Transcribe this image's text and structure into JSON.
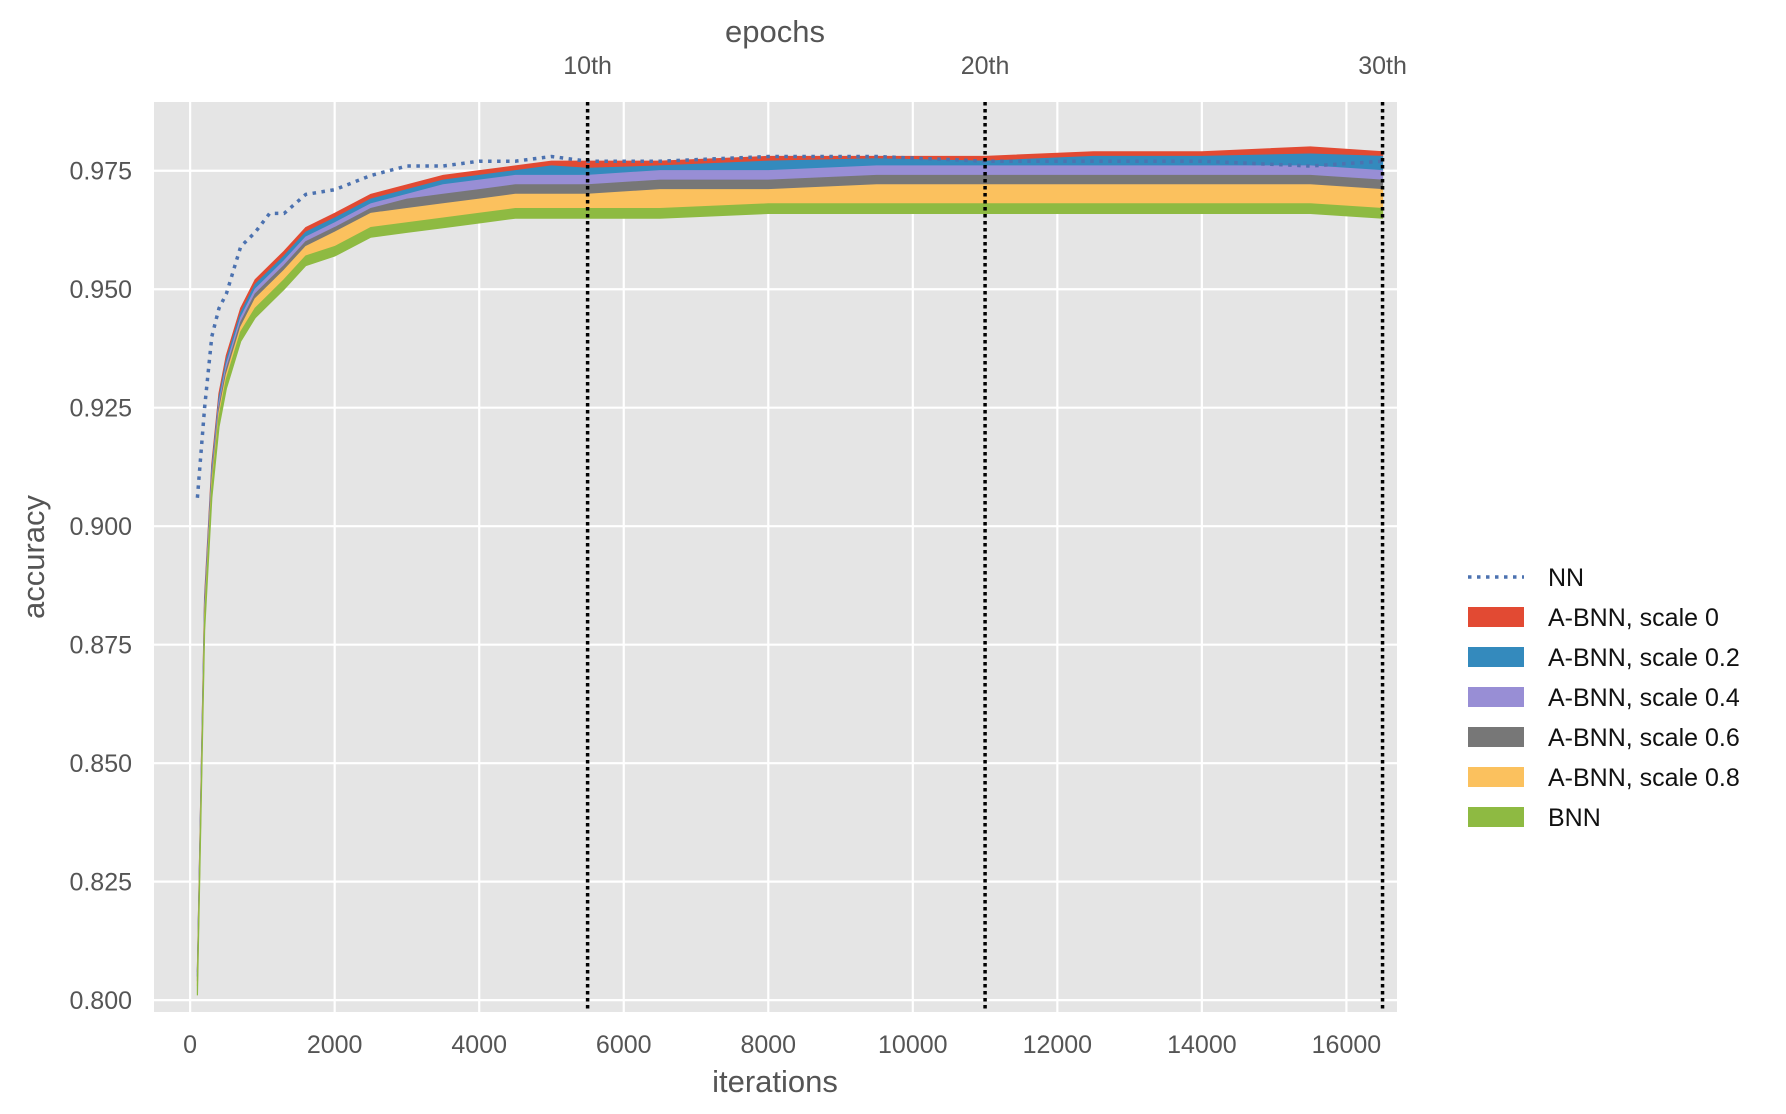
{
  "chart_data": {
    "type": "area",
    "title": "",
    "xlabel": "iterations",
    "ylabel": "accuracy",
    "top_axis_label": "epochs",
    "xlim": [
      -500,
      16700
    ],
    "ylim": [
      0.7975,
      0.9895
    ],
    "x_ticks": [
      0,
      2000,
      4000,
      6000,
      8000,
      10000,
      12000,
      14000,
      16000
    ],
    "y_ticks": [
      0.8,
      0.825,
      0.85,
      0.875,
      0.9,
      0.925,
      0.95,
      0.975
    ],
    "y_tick_labels": [
      "0.800",
      "0.825",
      "0.850",
      "0.875",
      "0.900",
      "0.925",
      "0.950",
      "0.975"
    ],
    "epoch_markers": [
      {
        "label": "10th",
        "x": 5500
      },
      {
        "label": "20th",
        "x": 11000
      },
      {
        "label": "30th",
        "x": 16500
      }
    ],
    "grid": true,
    "legend_position": "right",
    "x": [
      100,
      200,
      300,
      400,
      500,
      700,
      900,
      1100,
      1300,
      1600,
      2000,
      2500,
      3000,
      3500,
      4000,
      4500,
      5000,
      5500,
      6500,
      8000,
      9500,
      11000,
      12500,
      14000,
      15500,
      16500
    ],
    "series": [
      {
        "name": "NN",
        "style": "dotted-line",
        "color": "#4c72b0",
        "values": [
          0.906,
          0.925,
          0.94,
          0.946,
          0.949,
          0.959,
          0.962,
          0.966,
          0.966,
          0.97,
          0.971,
          0.974,
          0.976,
          0.976,
          0.977,
          0.977,
          0.978,
          0.977,
          0.977,
          0.978,
          0.978,
          0.977,
          0.977,
          0.977,
          0.976,
          0.977
        ]
      },
      {
        "name": "A-BNN, scale 0",
        "style": "band",
        "color": "#e24a33",
        "values": [
          0.806,
          0.885,
          0.913,
          0.928,
          0.936,
          0.946,
          0.952,
          0.955,
          0.958,
          0.963,
          0.966,
          0.97,
          0.972,
          0.974,
          0.975,
          0.976,
          0.977,
          0.977,
          0.977,
          0.978,
          0.978,
          0.978,
          0.979,
          0.979,
          0.98,
          0.979
        ]
      },
      {
        "name": "A-BNN, scale 0.2",
        "style": "band",
        "color": "#348abd",
        "values": [
          0.806,
          0.884,
          0.912,
          0.927,
          0.935,
          0.945,
          0.951,
          0.954,
          0.957,
          0.962,
          0.965,
          0.969,
          0.971,
          0.973,
          0.974,
          0.975,
          0.976,
          0.9755,
          0.976,
          0.977,
          0.9775,
          0.977,
          0.978,
          0.978,
          0.9785,
          0.978
        ]
      },
      {
        "name": "A-BNN, scale 0.4",
        "style": "band",
        "color": "#988ed5",
        "values": [
          0.805,
          0.883,
          0.911,
          0.926,
          0.934,
          0.944,
          0.95,
          0.953,
          0.956,
          0.961,
          0.964,
          0.968,
          0.97,
          0.972,
          0.973,
          0.974,
          0.974,
          0.974,
          0.975,
          0.975,
          0.976,
          0.976,
          0.976,
          0.976,
          0.976,
          0.975
        ]
      },
      {
        "name": "A-BNN, scale 0.6",
        "style": "band",
        "color": "#777777",
        "values": [
          0.805,
          0.882,
          0.91,
          0.925,
          0.933,
          0.943,
          0.949,
          0.952,
          0.955,
          0.96,
          0.963,
          0.967,
          0.969,
          0.97,
          0.971,
          0.972,
          0.972,
          0.972,
          0.973,
          0.973,
          0.974,
          0.974,
          0.974,
          0.974,
          0.974,
          0.973
        ]
      },
      {
        "name": "A-BNN, scale 0.8",
        "style": "band",
        "color": "#fbc15e",
        "values": [
          0.804,
          0.881,
          0.909,
          0.924,
          0.932,
          0.942,
          0.948,
          0.951,
          0.954,
          0.959,
          0.962,
          0.966,
          0.967,
          0.968,
          0.969,
          0.97,
          0.97,
          0.97,
          0.971,
          0.971,
          0.972,
          0.972,
          0.972,
          0.972,
          0.972,
          0.971
        ]
      },
      {
        "name": "BNN",
        "style": "band",
        "color": "#8eba42",
        "values": [
          0.803,
          0.88,
          0.908,
          0.923,
          0.931,
          0.941,
          0.946,
          0.949,
          0.952,
          0.957,
          0.959,
          0.963,
          0.964,
          0.965,
          0.966,
          0.967,
          0.967,
          0.967,
          0.967,
          0.968,
          0.968,
          0.968,
          0.968,
          0.968,
          0.968,
          0.967
        ]
      }
    ]
  }
}
